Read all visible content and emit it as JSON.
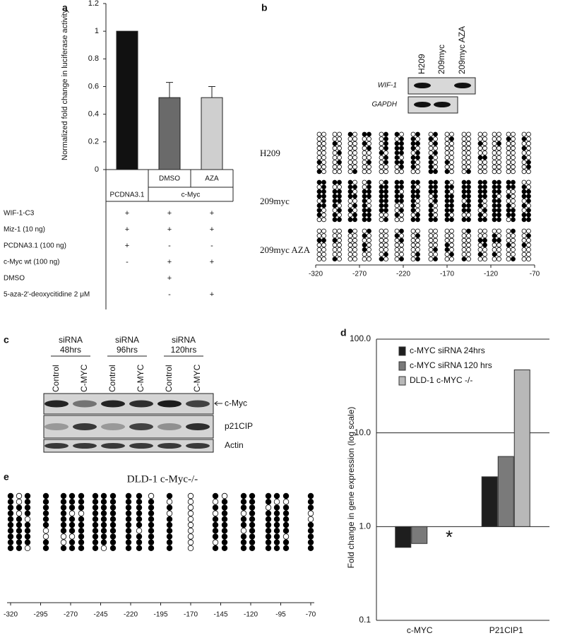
{
  "panel_labels": [
    "a",
    "b",
    "c",
    "d",
    "e"
  ],
  "chart_data": [
    {
      "type": "bar",
      "y_label": "Normalized fold change in luciferase activity",
      "categories": [
        "PCDNA3.1",
        "DMSO",
        "AZA"
      ],
      "group_label": "c-Myc",
      "values": [
        1,
        0.52,
        0.52
      ],
      "errors": [
        null,
        0.11,
        0.08
      ],
      "colors": [
        "#111111",
        "#6a6a6a",
        "#cfcfcf"
      ],
      "ylim": [
        0,
        1.2
      ],
      "yticks": [
        0,
        0.2,
        0.4,
        0.6,
        0.8,
        1,
        1.2
      ],
      "conditions": [
        {
          "label": "WIF-1-C3",
          "marks": [
            "+",
            "+",
            "+"
          ]
        },
        {
          "label": "Miz-1 (10 ng)",
          "marks": [
            "+",
            "+",
            "+"
          ]
        },
        {
          "label": "PCDNA3.1 (100 ng)",
          "marks": [
            "+",
            "-",
            "-"
          ]
        },
        {
          "label": "c-Myc wt (100 ng)",
          "marks": [
            "-",
            "+",
            "+"
          ]
        },
        {
          "label": "DMSO",
          "marks": [
            null,
            "+",
            null
          ]
        },
        {
          "label": "5-aza-2'-deoxycitidine  2 μM",
          "marks": [
            null,
            "-",
            "+"
          ]
        }
      ]
    },
    {
      "type": "bar",
      "log_scale": true,
      "grid": true,
      "y_label": "Fold change in gene expression (log scale)",
      "categories": [
        "c-MYC",
        "P21CIP1"
      ],
      "series": [
        {
          "name": "c-MYC siRNA 24hrs",
          "color": "#1e1e1e",
          "values": [
            0.6,
            3.4
          ]
        },
        {
          "name": "c-MYC siRNA 120 hrs",
          "color": "#7a7a7a",
          "values": [
            0.66,
            5.6
          ]
        },
        {
          "name": "DLD-1 c-MYC -/-",
          "color": "#b8b8b8",
          "values": [
            null,
            47
          ]
        }
      ],
      "annotation": "*",
      "ylim": [
        0.1,
        100
      ],
      "yticks": [
        0.1,
        {
          "value": 1,
          "label": "1.0"
        },
        {
          "value": 10,
          "label": "10.0"
        },
        {
          "value": 100,
          "label": "100.0"
        }
      ]
    }
  ],
  "panel_b": {
    "gel_lanes": [
      "H209",
      "209myc",
      "209myc AZA"
    ],
    "gel_rows": [
      "WIF-1",
      "GAPDH"
    ],
    "samples": [
      "H209",
      "209myc",
      "209myc AZA"
    ],
    "xticks": [
      -320,
      -270,
      -220,
      -170,
      -120,
      -70
    ]
  },
  "panel_c": {
    "groups": [
      {
        "line1": "siRNA",
        "line2": "48hrs"
      },
      {
        "line1": "siRNA",
        "line2": "96hrs"
      },
      {
        "line1": "siRNA",
        "line2": "120hrs"
      }
    ],
    "lanes": [
      "Control",
      "C-MYC",
      "Control",
      "C-MYC",
      "Control",
      "C-MYC"
    ],
    "blots": [
      "c-Myc",
      "p21CIP",
      "Actin"
    ]
  },
  "panel_e": {
    "title": "DLD-1 c-Myc-/-",
    "xticks": [
      -320,
      -295,
      -270,
      -245,
      -220,
      -195,
      -170,
      -145,
      -120,
      -95,
      -70
    ]
  }
}
